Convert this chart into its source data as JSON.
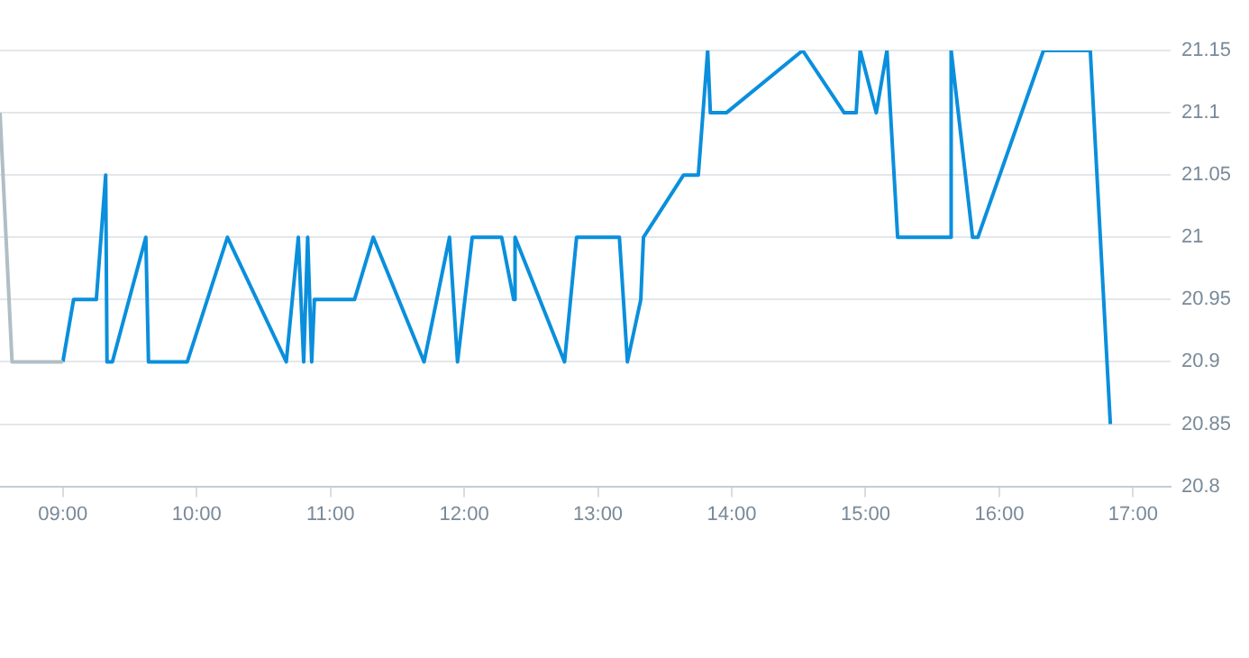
{
  "chart_data": {
    "type": "line",
    "x": [
      9.0,
      9.08,
      9.25,
      9.32,
      9.33,
      9.37,
      9.62,
      9.64,
      9.93,
      10.23,
      10.67,
      10.76,
      10.8,
      10.83,
      10.86,
      10.88,
      11.18,
      11.32,
      11.7,
      11.89,
      11.95,
      12.06,
      12.28,
      12.37,
      12.38,
      12.75,
      12.84,
      13.16,
      13.22,
      13.32,
      13.34,
      13.64,
      13.75,
      13.82,
      13.84,
      13.96,
      14.53,
      14.84,
      14.93,
      14.96,
      15.08,
      15.16,
      15.24,
      15.63,
      15.64,
      15.8,
      15.84,
      16.33,
      16.68,
      16.83
    ],
    "series": [
      {
        "color": "#b0bec5",
        "x": [
          8.53,
          8.62,
          9.0
        ],
        "values": [
          21.1,
          20.9,
          20.9
        ]
      },
      {
        "color": "#0a8fdc",
        "values": [
          20.9,
          20.95,
          20.95,
          21.05,
          20.9,
          20.9,
          21.0,
          20.9,
          20.9,
          21.0,
          20.9,
          21.0,
          20.9,
          21.0,
          20.9,
          20.95,
          20.95,
          21.0,
          20.9,
          21.0,
          20.9,
          21.0,
          21.0,
          20.95,
          21.0,
          20.9,
          21.0,
          21.0,
          20.9,
          20.95,
          21.0,
          21.05,
          21.05,
          21.15,
          21.1,
          21.1,
          21.15,
          21.1,
          21.1,
          21.15,
          21.1,
          21.15,
          21.0,
          21.0,
          21.15,
          21.0,
          21.0,
          21.15,
          21.15,
          20.85
        ]
      }
    ],
    "xlim": [
      8.53,
      17.28
    ],
    "xticks": [
      {
        "value": 9,
        "label": "09:00"
      },
      {
        "value": 10,
        "label": "10:00"
      },
      {
        "value": 11,
        "label": "11:00"
      },
      {
        "value": 12,
        "label": "12:00"
      },
      {
        "value": 13,
        "label": "13:00"
      },
      {
        "value": 14,
        "label": "14:00"
      },
      {
        "value": 15,
        "label": "15:00"
      },
      {
        "value": 16,
        "label": "16:00"
      },
      {
        "value": 17,
        "label": "17:00"
      }
    ],
    "ylim": [
      20.8,
      21.15
    ],
    "yticks": [
      20.8,
      20.85,
      20.9,
      20.95,
      21,
      21.05,
      21.1,
      21.15
    ],
    "grid": "y",
    "legend": false,
    "marker": "none",
    "line_style": "solid"
  }
}
